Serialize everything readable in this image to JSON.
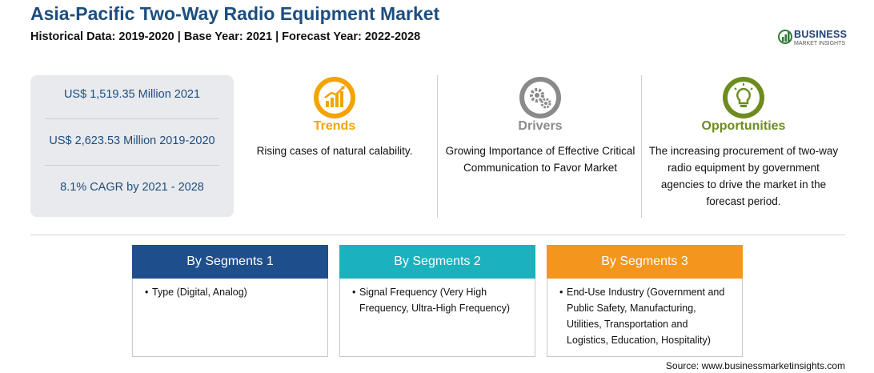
{
  "header": {
    "title": "Asia-Pacific Two-Way Radio Equipment Market",
    "subtitle": "Historical Data: 2019-2020 | Base Year: 2021 | Forecast Year: 2022-2028"
  },
  "logo": {
    "name": "BUSINESS",
    "tagline": "MARKET INSIGHTS"
  },
  "stats": [
    "US$ 1,519.35 Million 2021",
    "US$ 2,623.53 Million 2019-2020",
    "8.1% CAGR by 2021 - 2028"
  ],
  "columns": {
    "trends": {
      "title": "Trends",
      "text": "Rising cases of natural calability.",
      "color": "#f4a300",
      "icon": "chart-growth-icon"
    },
    "drivers": {
      "title": "Drivers",
      "text": "Growing Importance of Effective Critical Communication to Favor Market",
      "color": "#8a8a8a",
      "icon": "gears-icon"
    },
    "opportunities": {
      "title": "Opportunities",
      "text": "The increasing procurement of two-way radio equipment by government agencies to drive the market in the forecast period.",
      "color": "#6e8b1f",
      "icon": "lightbulb-icon"
    }
  },
  "segments": [
    {
      "title": "By Segments 1",
      "color": "#1f4e8c",
      "bullet": "•",
      "text": "Type (Digital, Analog)"
    },
    {
      "title": "By Segments 2",
      "color": "#1bb2be",
      "bullet": "•",
      "text": "Signal Frequency (Very High Frequency, Ultra-High Frequency)"
    },
    {
      "title": "By Segments 3",
      "color": "#f5961c",
      "bullet": "•",
      "text": "End-Use Industry (Government and Public Safety, Manufacturing, Utilities, Transportation and Logistics, Education, Hospitality)"
    }
  ],
  "source": "Source: www.businessmarketinsights.com"
}
